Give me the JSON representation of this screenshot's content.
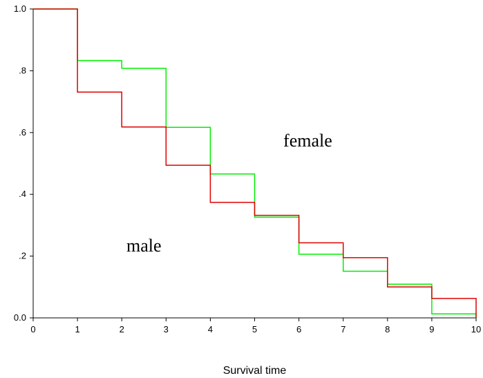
{
  "chart_data": {
    "type": "line",
    "step": true,
    "title": "",
    "xlabel": "Survival time",
    "ylabel": "",
    "xlim": [
      0,
      10
    ],
    "ylim": [
      0,
      1
    ],
    "x_ticks": [
      0,
      1,
      2,
      3,
      4,
      5,
      6,
      7,
      8,
      9,
      10
    ],
    "x_tick_labels": [
      "0",
      "1",
      "2",
      "3",
      "4",
      "5",
      "6",
      "7",
      "8",
      "9",
      "10"
    ],
    "y_ticks": [
      0,
      0.2,
      0.4,
      0.6,
      0.8,
      1.0
    ],
    "y_tick_labels": [
      "0.0",
      ".2",
      ".4",
      ".6",
      ".8",
      "1.0"
    ],
    "grid": false,
    "legend": "none",
    "x": [
      0,
      1,
      2,
      3,
      4,
      5,
      6,
      7,
      8,
      9,
      10
    ],
    "series": [
      {
        "color": "#00ee00",
        "values": [
          1.0,
          0.833,
          0.808,
          0.617,
          0.466,
          0.326,
          0.206,
          0.151,
          0.109,
          0.013,
          0.0
        ]
      },
      {
        "color": "#dd0000",
        "values": [
          1.0,
          0.731,
          0.618,
          0.494,
          0.374,
          0.332,
          0.243,
          0.195,
          0.1,
          0.063,
          0.0
        ]
      }
    ],
    "annotations": [
      {
        "text": "female",
        "x": 6.2,
        "y": 0.555
      },
      {
        "text": "male",
        "x": 2.5,
        "y": 0.215
      }
    ]
  }
}
